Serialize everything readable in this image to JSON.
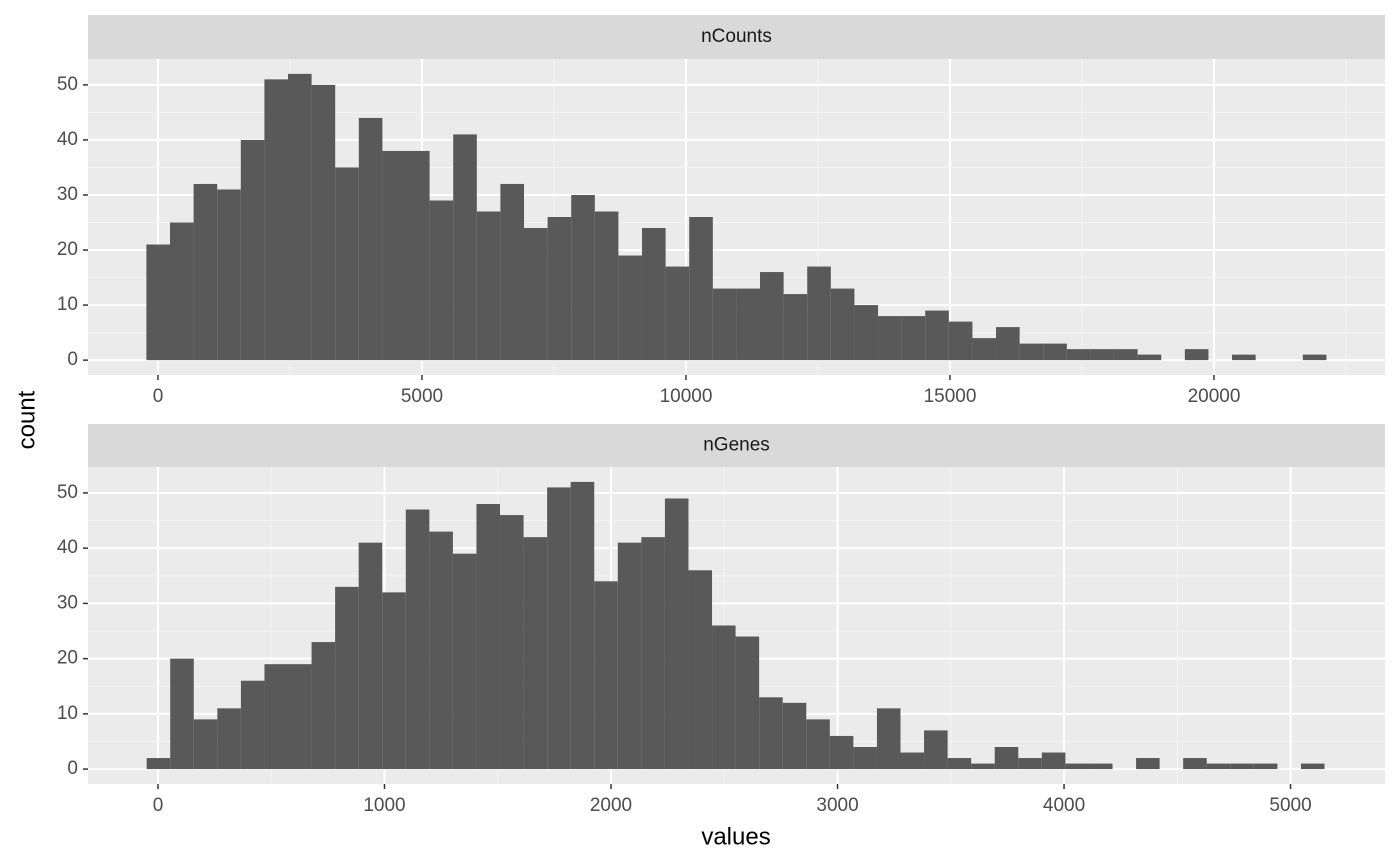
{
  "chart_data": [
    {
      "type": "histogram",
      "title": "nCounts",
      "color": "#595959",
      "grid": true,
      "bins": [
        -220,
        227,
        674,
        1121,
        1568,
        2015,
        2462,
        2909,
        3356,
        3803,
        4250,
        4697,
        5144,
        5591,
        6038,
        6485,
        6932,
        7379,
        7826,
        8273,
        8720,
        9167,
        9614,
        10061,
        10508,
        10955,
        11402,
        11849,
        12296,
        12743,
        13190,
        13637,
        14084,
        14531,
        14978,
        15425,
        15872,
        16319,
        16766,
        17213,
        17660,
        18107,
        18554,
        19001,
        19448,
        19895,
        20342,
        20789,
        21236,
        21683,
        22130
      ],
      "values": [
        21,
        25,
        32,
        31,
        40,
        51,
        52,
        50,
        35,
        44,
        38,
        38,
        29,
        41,
        27,
        32,
        24,
        26,
        30,
        27,
        19,
        24,
        17,
        26,
        13,
        13,
        16,
        12,
        17,
        13,
        10,
        8,
        8,
        9,
        7,
        4,
        6,
        3,
        3,
        2,
        2,
        2,
        1,
        0,
        2,
        0,
        1,
        0,
        0,
        1
      ],
      "xlim": [
        -1326,
        23239
      ],
      "xticks": [
        0,
        5000,
        10000,
        15000,
        20000
      ],
      "ylim": [
        -2.7,
        54.7
      ],
      "yticks": [
        0,
        10,
        20,
        30,
        40,
        50
      ]
    },
    {
      "type": "histogram",
      "title": "nGenes",
      "color": "#595959",
      "grid": true,
      "bins": [
        -50,
        54,
        158,
        262,
        366,
        470,
        574,
        678,
        782,
        886,
        990,
        1094,
        1198,
        1302,
        1406,
        1510,
        1614,
        1718,
        1822,
        1926,
        2030,
        2134,
        2238,
        2342,
        2446,
        2550,
        2654,
        2758,
        2862,
        2966,
        3070,
        3174,
        3278,
        3382,
        3486,
        3590,
        3694,
        3798,
        3902,
        4006,
        4110,
        4214,
        4318,
        4422,
        4526,
        4630,
        4734,
        4838,
        4942,
        5046,
        5150
      ],
      "values": [
        2,
        20,
        9,
        11,
        16,
        19,
        19,
        23,
        33,
        41,
        32,
        47,
        43,
        39,
        48,
        46,
        42,
        51,
        52,
        34,
        41,
        42,
        49,
        36,
        26,
        24,
        13,
        12,
        9,
        6,
        4,
        11,
        3,
        7,
        2,
        1,
        4,
        2,
        3,
        1,
        1,
        0,
        2,
        0,
        2,
        1,
        1,
        1,
        0,
        1
      ],
      "xlim": [
        -309,
        5417
      ],
      "xticks": [
        0,
        1000,
        2000,
        3000,
        4000,
        5000
      ],
      "ylim": [
        -2.7,
        54.7
      ],
      "yticks": [
        0,
        10,
        20,
        30,
        40,
        50
      ]
    }
  ],
  "shared": {
    "xlabel": "values",
    "ylabel": "count"
  }
}
